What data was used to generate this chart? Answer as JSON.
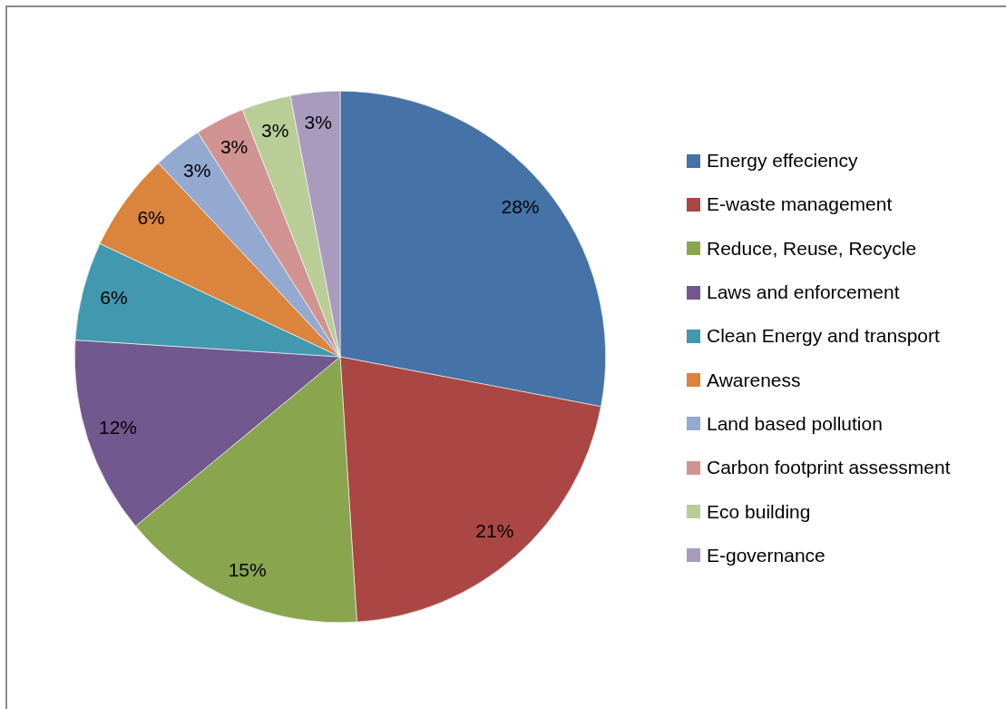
{
  "chart_data": {
    "type": "pie",
    "categories": [
      "Energy effeciency",
      "E-waste management",
      "Reduce, Reuse, Recycle",
      "Laws and enforcement",
      "Clean Energy and transport",
      "Awareness",
      "Land based pollution",
      "Carbon footprint assessment",
      "Eco building",
      "E-governance"
    ],
    "values": [
      28,
      21,
      15,
      12,
      6,
      6,
      3,
      3,
      3,
      3
    ],
    "colors": [
      "#4572a7",
      "#aa4643",
      "#89a54e",
      "#71588f",
      "#4198af",
      "#db843d",
      "#93a9cf",
      "#d19392",
      "#b9cd96",
      "#a99bbd"
    ],
    "value_labels": [
      "28%",
      "21%",
      "15%",
      "12%",
      "6%",
      "6%",
      "3%",
      "3%",
      "3%",
      "3%"
    ],
    "legend": "right"
  }
}
